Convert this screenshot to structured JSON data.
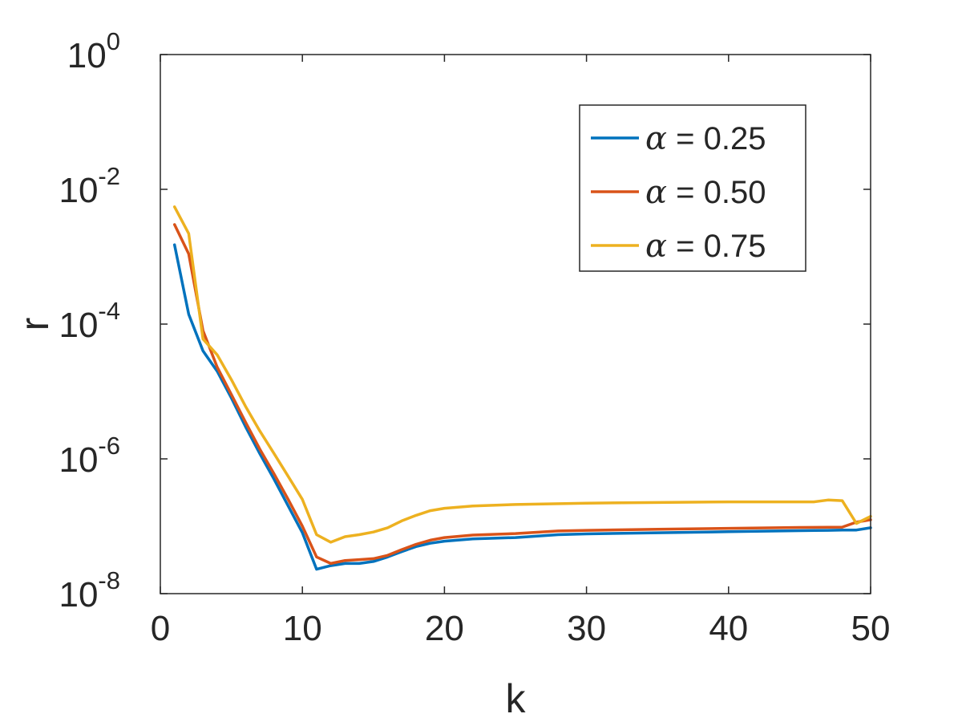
{
  "chart_data": {
    "type": "line",
    "xlabel": "k",
    "ylabel": "r",
    "xlim": [
      0,
      50
    ],
    "ylim": [
      1e-08,
      1
    ],
    "yscale": "log",
    "grid": false,
    "legend_position": "top-right",
    "x_ticks": [
      {
        "value": 0,
        "label": "0"
      },
      {
        "value": 10,
        "label": "10"
      },
      {
        "value": 20,
        "label": "20"
      },
      {
        "value": 30,
        "label": "30"
      },
      {
        "value": 40,
        "label": "40"
      },
      {
        "value": 50,
        "label": "50"
      }
    ],
    "y_ticks": [
      {
        "value": 1e-08,
        "base": "10",
        "exp": "-8"
      },
      {
        "value": 1e-06,
        "base": "10",
        "exp": "-6"
      },
      {
        "value": 0.0001,
        "base": "10",
        "exp": "-4"
      },
      {
        "value": 0.01,
        "base": "10",
        "exp": "-2"
      },
      {
        "value": 1,
        "base": "10",
        "exp": "0"
      }
    ],
    "series": [
      {
        "name": "α = 0.25",
        "symbol": "α",
        "value_text": " = 0.25",
        "color": "#0072BD",
        "points": [
          [
            1,
            0.0015
          ],
          [
            2,
            0.00014
          ],
          [
            3,
            4e-05
          ],
          [
            4,
            2e-05
          ],
          [
            5,
            8e-06
          ],
          [
            6,
            3e-06
          ],
          [
            7,
            1.2e-06
          ],
          [
            8,
            5e-07
          ],
          [
            9,
            2e-07
          ],
          [
            10,
            8e-08
          ],
          [
            11,
            2.3e-08
          ],
          [
            12,
            2.6e-08
          ],
          [
            13,
            2.8e-08
          ],
          [
            14,
            2.8e-08
          ],
          [
            15,
            3e-08
          ],
          [
            16,
            3.5e-08
          ],
          [
            17,
            4.2e-08
          ],
          [
            18,
            5e-08
          ],
          [
            19,
            5.6e-08
          ],
          [
            20,
            6e-08
          ],
          [
            22,
            6.5e-08
          ],
          [
            25,
            6.8e-08
          ],
          [
            28,
            7.5e-08
          ],
          [
            30,
            7.7e-08
          ],
          [
            35,
            8e-08
          ],
          [
            40,
            8.3e-08
          ],
          [
            45,
            8.6e-08
          ],
          [
            47,
            8.7e-08
          ],
          [
            48,
            8.8e-08
          ],
          [
            49,
            8.8e-08
          ],
          [
            50,
            9.5e-08
          ]
        ]
      },
      {
        "name": "α = 0.50",
        "symbol": "α",
        "value_text": " = 0.50",
        "color": "#D95319",
        "points": [
          [
            1,
            0.003
          ],
          [
            2,
            0.0011
          ],
          [
            3,
            8e-05
          ],
          [
            4,
            2.3e-05
          ],
          [
            5,
            9e-06
          ],
          [
            6,
            3.5e-06
          ],
          [
            7,
            1.4e-06
          ],
          [
            8,
            6e-07
          ],
          [
            9,
            2.5e-07
          ],
          [
            10,
            1e-07
          ],
          [
            11,
            3.5e-08
          ],
          [
            12,
            2.8e-08
          ],
          [
            13,
            3.1e-08
          ],
          [
            14,
            3.2e-08
          ],
          [
            15,
            3.3e-08
          ],
          [
            16,
            3.7e-08
          ],
          [
            17,
            4.5e-08
          ],
          [
            18,
            5.4e-08
          ],
          [
            19,
            6.2e-08
          ],
          [
            20,
            6.8e-08
          ],
          [
            22,
            7.4e-08
          ],
          [
            25,
            7.8e-08
          ],
          [
            28,
            8.5e-08
          ],
          [
            30,
            8.7e-08
          ],
          [
            35,
            9e-08
          ],
          [
            40,
            9.3e-08
          ],
          [
            45,
            9.6e-08
          ],
          [
            48,
            9.7e-08
          ],
          [
            49,
            1.15e-07
          ],
          [
            50,
            1.25e-07
          ]
        ]
      },
      {
        "name": "α = 0.75",
        "symbol": "α",
        "value_text": " = 0.75",
        "color": "#EDB120",
        "points": [
          [
            1,
            0.0055
          ],
          [
            2,
            0.0022
          ],
          [
            3,
            6e-05
          ],
          [
            4,
            3.5e-05
          ],
          [
            5,
            1.5e-05
          ],
          [
            6,
            6e-06
          ],
          [
            7,
            2.6e-06
          ],
          [
            8,
            1.2e-06
          ],
          [
            9,
            5.5e-07
          ],
          [
            10,
            2.5e-07
          ],
          [
            11,
            7.5e-08
          ],
          [
            12,
            5.8e-08
          ],
          [
            13,
            7e-08
          ],
          [
            14,
            7.5e-08
          ],
          [
            15,
            8.2e-08
          ],
          [
            16,
            9.5e-08
          ],
          [
            17,
            1.2e-07
          ],
          [
            18,
            1.45e-07
          ],
          [
            19,
            1.7e-07
          ],
          [
            20,
            1.85e-07
          ],
          [
            22,
            2e-07
          ],
          [
            25,
            2.1e-07
          ],
          [
            30,
            2.2e-07
          ],
          [
            35,
            2.25e-07
          ],
          [
            40,
            2.3e-07
          ],
          [
            45,
            2.3e-07
          ],
          [
            46,
            2.3e-07
          ],
          [
            47,
            2.45e-07
          ],
          [
            48,
            2.4e-07
          ],
          [
            49,
            1.1e-07
          ],
          [
            50,
            1.4e-07
          ]
        ]
      }
    ]
  }
}
